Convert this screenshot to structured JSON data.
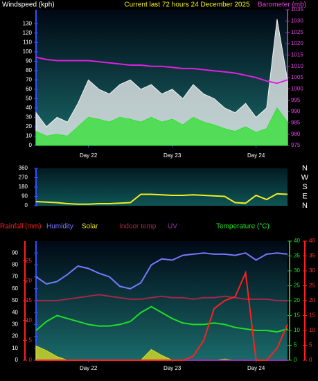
{
  "chart_data": [
    {
      "type": "line",
      "title": "Current last 72 hours 24 December 2025",
      "ylabel": "Windspeed (kph)",
      "y2label": "Barometer (mb)",
      "x": [
        0,
        3,
        6,
        9,
        12,
        15,
        18,
        21,
        24,
        27,
        30,
        33,
        36,
        39,
        42,
        45,
        48,
        51,
        54,
        57,
        60,
        63,
        66,
        69,
        72
      ],
      "xlim": [
        0,
        72
      ],
      "xticks": [
        {
          "value": 15,
          "label": "Day 22"
        },
        {
          "value": 39,
          "label": "Day 23"
        },
        {
          "value": 63,
          "label": "Day 24"
        }
      ],
      "ylim": [
        0,
        145
      ],
      "yticks": [
        0,
        10,
        20,
        30,
        40,
        50,
        60,
        70,
        80,
        90,
        100,
        110,
        120,
        130
      ],
      "y2lim": [
        975,
        1035
      ],
      "y2ticks": [
        975,
        980,
        985,
        990,
        995,
        1000,
        1005,
        1010,
        1015,
        1020,
        1025,
        1030,
        1035
      ],
      "series": [
        {
          "color": "#f4f4f4",
          "fill": true,
          "values": [
            35,
            20,
            30,
            25,
            45,
            70,
            60,
            55,
            65,
            70,
            60,
            65,
            55,
            60,
            50,
            65,
            55,
            50,
            40,
            35,
            45,
            30,
            40,
            135,
            70
          ]
        },
        {
          "color": "#30e030",
          "fill": true,
          "values": [
            15,
            10,
            12,
            10,
            20,
            30,
            28,
            25,
            30,
            28,
            25,
            30,
            25,
            28,
            22,
            30,
            25,
            22,
            18,
            15,
            20,
            14,
            18,
            40,
            25
          ]
        },
        {
          "color": "#e020e0",
          "fill": false,
          "axis": "y2",
          "values": [
            1014,
            1013,
            1012.5,
            1012.5,
            1012.5,
            1012.5,
            1012,
            1011.5,
            1011,
            1010.5,
            1010.5,
            1010,
            1010,
            1009.5,
            1009,
            1009,
            1008.5,
            1008,
            1007.5,
            1007,
            1006,
            1005,
            1003.5,
            1002.5,
            1004
          ]
        }
      ]
    },
    {
      "type": "line",
      "x": [
        0,
        3,
        6,
        9,
        12,
        15,
        18,
        21,
        24,
        27,
        30,
        33,
        36,
        39,
        42,
        45,
        48,
        51,
        54,
        57,
        60,
        63,
        66,
        69,
        72
      ],
      "xlim": [
        0,
        72
      ],
      "ylim": [
        0,
        360
      ],
      "yticks": [
        0,
        90,
        180,
        270,
        360
      ],
      "y2lim": [
        0,
        360
      ],
      "y2ticks": [
        {
          "value": 360,
          "label": "N"
        },
        {
          "value": 270,
          "label": "W"
        },
        {
          "value": 180,
          "label": "S"
        },
        {
          "value": 90,
          "label": "E"
        },
        {
          "value": 0,
          "label": "N"
        }
      ],
      "series": [
        {
          "color": "#f0f020",
          "fill": false,
          "values": [
            40,
            35,
            30,
            20,
            15,
            15,
            20,
            20,
            25,
            30,
            110,
            110,
            105,
            100,
            100,
            105,
            100,
            95,
            90,
            30,
            25,
            100,
            60,
            115,
            110
          ]
        }
      ]
    },
    {
      "type": "line",
      "x": [
        0,
        3,
        6,
        9,
        12,
        15,
        18,
        21,
        24,
        27,
        30,
        33,
        36,
        39,
        42,
        45,
        48,
        51,
        54,
        57,
        60,
        63,
        66,
        69,
        72
      ],
      "xlim": [
        0,
        72
      ],
      "xticks": [
        {
          "value": 15,
          "label": "Day 22"
        },
        {
          "value": 39,
          "label": "Day 23"
        },
        {
          "value": 63,
          "label": "Day 24"
        }
      ],
      "ylim": [
        0,
        100
      ],
      "yticks": [
        0,
        10,
        20,
        30,
        40,
        50,
        60,
        70,
        80,
        90
      ],
      "y2lim": [
        0,
        40
      ],
      "y2ticks": [
        0,
        5,
        10,
        15,
        20,
        25,
        30,
        35,
        40
      ],
      "y3lim": [
        0,
        30
      ],
      "y3ticks": [
        0,
        5,
        10,
        15,
        20,
        25
      ],
      "y4lim": [
        0,
        40
      ],
      "y4ticks": [
        0,
        5,
        10,
        15,
        20,
        25,
        30,
        35,
        40
      ],
      "series": [
        {
          "name": "Solar",
          "color": "#e0e020",
          "fill": true,
          "values": [
            12,
            8,
            3,
            0,
            0,
            0,
            0,
            0,
            0,
            0,
            0,
            9,
            4,
            0,
            0,
            0,
            0,
            0,
            1,
            0,
            0,
            0,
            0,
            0,
            0
          ]
        },
        {
          "name": "UV",
          "color": "#9030a0",
          "fill": false,
          "axis": "y4",
          "values": [
            0,
            0,
            0,
            0,
            0,
            0,
            0,
            0,
            0,
            0,
            0,
            0,
            0,
            0,
            0,
            0,
            0,
            0,
            0,
            0,
            0,
            0,
            0,
            0,
            0
          ]
        },
        {
          "name": "Indoor temp",
          "color": "#a02848",
          "fill": false,
          "axis": "y2",
          "values": [
            20,
            20,
            20,
            20.5,
            21,
            21.5,
            22,
            21.5,
            21,
            20.5,
            20.5,
            21,
            21.5,
            21,
            21,
            20.5,
            21,
            21,
            21.5,
            21,
            20.5,
            20.5,
            20.5,
            20,
            20
          ]
        },
        {
          "name": "Humidity",
          "color": "#7878ff",
          "fill": false,
          "values": [
            70,
            64,
            66,
            72,
            79,
            77,
            73,
            70,
            62,
            60,
            65,
            80,
            85,
            84,
            88,
            89,
            90,
            89,
            89,
            88,
            90,
            84,
            89,
            90,
            89
          ]
        },
        {
          "name": "Temperature (°C)",
          "color": "#20e020",
          "fill": false,
          "axis": "y2",
          "values": [
            10,
            13,
            15,
            14,
            13,
            12,
            11.5,
            11.5,
            12,
            13,
            16,
            18,
            16,
            14,
            12.5,
            12,
            12,
            12.5,
            12,
            11,
            10.5,
            10,
            10,
            9.5,
            10.5
          ]
        },
        {
          "name": "Rainfall (mm)",
          "color": "#ff2020",
          "fill": false,
          "axis": "y3",
          "values": [
            0,
            0,
            0,
            0,
            0,
            0,
            0,
            0,
            0,
            0,
            0,
            0,
            0,
            0,
            0,
            1,
            5,
            13,
            15,
            16,
            22,
            0,
            0,
            3,
            9
          ]
        }
      ]
    }
  ]
}
